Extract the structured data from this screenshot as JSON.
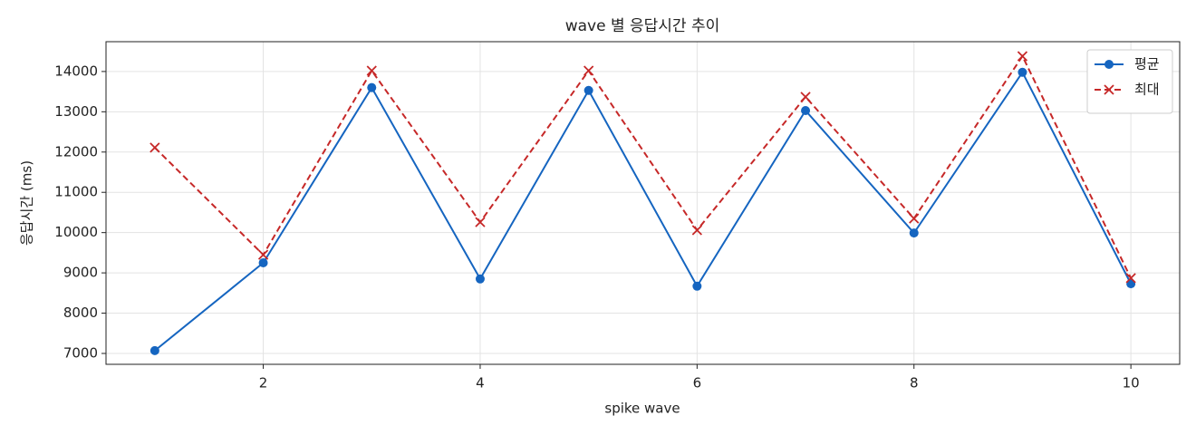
{
  "chart_data": {
    "type": "line",
    "title": "wave 별 응답시간 추이",
    "xlabel": "spike wave",
    "ylabel": "응답시간 (ms)",
    "x": [
      1,
      2,
      3,
      4,
      5,
      6,
      7,
      8,
      9,
      10
    ],
    "series": [
      {
        "name": "평균",
        "color": "#1565c0",
        "marker": "o",
        "linestyle": "solid",
        "values": [
          7070,
          9250,
          13600,
          8850,
          13530,
          8670,
          13030,
          9990,
          13980,
          8730
        ]
      },
      {
        "name": "최대",
        "color": "#c62828",
        "marker": "x",
        "linestyle": "dashed",
        "values": [
          12110,
          9450,
          14020,
          10260,
          14020,
          10060,
          13370,
          10350,
          14380,
          8870
        ]
      }
    ],
    "xlim": [
      0.55,
      10.45
    ],
    "xticks": [
      2,
      4,
      6,
      8,
      10
    ],
    "ylim": [
      6730,
      14740
    ],
    "yticks": [
      7000,
      8000,
      9000,
      10000,
      11000,
      12000,
      13000,
      14000
    ],
    "grid": true,
    "legend": "upper right"
  }
}
